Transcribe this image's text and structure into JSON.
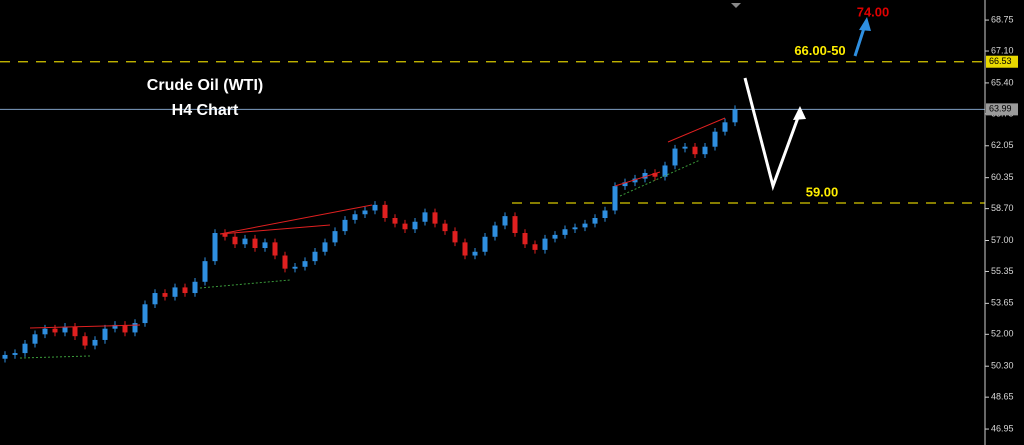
{
  "chart_data": {
    "type": "candlestick",
    "title": "Crude Oil (WTI)",
    "subtitle": "H4 Chart",
    "up_color": "#2f8fe0",
    "down_color": "#e02020",
    "open": [
      50.7,
      50.9,
      51.0,
      51.5,
      52.0,
      52.3,
      52.1,
      52.4,
      51.9,
      51.4,
      51.7,
      52.3,
      52.5,
      52.1,
      52.6,
      53.6,
      54.2,
      54.0,
      54.5,
      54.2,
      54.8,
      55.9,
      57.4,
      57.2,
      56.8,
      57.1,
      56.6,
      56.9,
      56.2,
      55.5,
      55.6,
      55.9,
      56.4,
      56.9,
      57.5,
      58.1,
      58.4,
      58.6,
      58.9,
      58.2,
      57.9,
      57.6,
      58.0,
      58.5,
      57.9,
      57.5,
      56.9,
      56.2,
      56.4,
      57.2,
      57.8,
      58.3,
      57.4,
      56.8,
      56.5,
      57.1,
      57.3,
      57.6,
      57.7,
      57.9,
      58.2,
      58.6,
      59.9,
      60.1,
      60.3,
      60.6,
      60.4,
      61.0,
      61.9,
      62.0,
      61.6,
      62.0,
      62.8,
      63.3
    ],
    "high": [
      51.1,
      51.2,
      51.7,
      52.2,
      52.5,
      52.5,
      52.6,
      52.6,
      52.1,
      51.9,
      52.5,
      52.7,
      52.7,
      52.8,
      53.8,
      54.4,
      54.4,
      54.7,
      54.7,
      55.0,
      56.1,
      57.6,
      57.6,
      57.4,
      57.3,
      57.3,
      57.1,
      57.1,
      56.4,
      55.8,
      56.1,
      56.6,
      57.1,
      57.7,
      58.3,
      58.6,
      58.8,
      59.1,
      59.1,
      58.4,
      58.1,
      58.2,
      58.7,
      58.7,
      58.1,
      57.7,
      57.1,
      56.6,
      57.4,
      58.0,
      58.5,
      58.5,
      57.6,
      57.0,
      57.3,
      57.5,
      57.8,
      57.9,
      58.1,
      58.4,
      58.8,
      60.1,
      60.3,
      60.5,
      60.8,
      60.8,
      61.2,
      62.1,
      62.2,
      62.2,
      62.2,
      63.0,
      63.5,
      64.2
    ],
    "low": [
      50.5,
      50.7,
      50.8,
      51.3,
      51.8,
      51.9,
      51.9,
      51.7,
      51.2,
      51.2,
      51.5,
      52.1,
      51.9,
      51.9,
      52.4,
      53.4,
      53.8,
      53.8,
      54.0,
      54.0,
      54.6,
      55.7,
      57.0,
      56.6,
      56.6,
      56.4,
      56.4,
      56.0,
      55.3,
      55.3,
      55.4,
      55.7,
      56.2,
      56.7,
      57.3,
      57.9,
      58.2,
      58.4,
      58.0,
      57.7,
      57.4,
      57.4,
      57.8,
      57.7,
      57.3,
      56.7,
      56.0,
      56.0,
      56.2,
      57.0,
      57.6,
      57.2,
      56.6,
      56.3,
      56.3,
      56.9,
      57.1,
      57.4,
      57.5,
      57.7,
      58.0,
      58.4,
      59.7,
      59.9,
      60.1,
      60.2,
      60.2,
      60.8,
      61.7,
      61.4,
      61.4,
      61.8,
      62.6,
      63.1
    ],
    "close": [
      50.9,
      51.0,
      51.5,
      52.0,
      52.3,
      52.1,
      52.4,
      51.9,
      51.4,
      51.7,
      52.3,
      52.5,
      52.1,
      52.6,
      53.6,
      54.2,
      54.0,
      54.5,
      54.2,
      54.8,
      55.9,
      57.4,
      57.2,
      56.8,
      57.1,
      56.6,
      56.9,
      56.2,
      55.5,
      55.6,
      55.9,
      56.4,
      56.9,
      57.5,
      58.1,
      58.4,
      58.6,
      58.9,
      58.2,
      57.9,
      57.6,
      58.0,
      58.5,
      57.9,
      57.5,
      56.9,
      56.2,
      56.4,
      57.2,
      57.8,
      58.3,
      57.4,
      56.8,
      56.5,
      57.1,
      57.3,
      57.6,
      57.7,
      57.9,
      58.2,
      58.6,
      59.9,
      60.1,
      60.3,
      60.6,
      60.4,
      61.0,
      61.9,
      62.0,
      61.6,
      62.0,
      62.8,
      63.3,
      63.99
    ],
    "ylim": [
      46.1,
      69.82
    ],
    "yticks": [
      {
        "value": 68.75,
        "label": "68.75"
      },
      {
        "value": 67.1,
        "label": "67.10"
      },
      {
        "value": 65.4,
        "label": "65.40"
      },
      {
        "value": 63.75,
        "label": "63.75"
      },
      {
        "value": 62.05,
        "label": "62.05"
      },
      {
        "value": 60.35,
        "label": "60.35"
      },
      {
        "value": 58.7,
        "label": "58.70"
      },
      {
        "value": 57,
        "label": "57.00"
      },
      {
        "value": 55.35,
        "label": "55.35"
      },
      {
        "value": 53.65,
        "label": "53.65"
      },
      {
        "value": 52,
        "label": "52.00"
      },
      {
        "value": 50.3,
        "label": "50.30"
      },
      {
        "value": 48.65,
        "label": "48.65"
      },
      {
        "value": 46.95,
        "label": "46.95"
      }
    ],
    "levels": [
      {
        "value": 66.53,
        "label": "66.00-50",
        "color": "#d6c800"
      },
      {
        "value": 59,
        "label": "59.00",
        "color": "#d6c800"
      }
    ],
    "price_tags": [
      {
        "value": 66.53,
        "color": "#e8d800"
      },
      {
        "value": 63.99,
        "color": "#9a9a9a"
      }
    ],
    "price_line": {
      "value": 63.99,
      "color": "#7f9fc4"
    },
    "target": {
      "label": "74.00",
      "color": "#e00000"
    }
  }
}
